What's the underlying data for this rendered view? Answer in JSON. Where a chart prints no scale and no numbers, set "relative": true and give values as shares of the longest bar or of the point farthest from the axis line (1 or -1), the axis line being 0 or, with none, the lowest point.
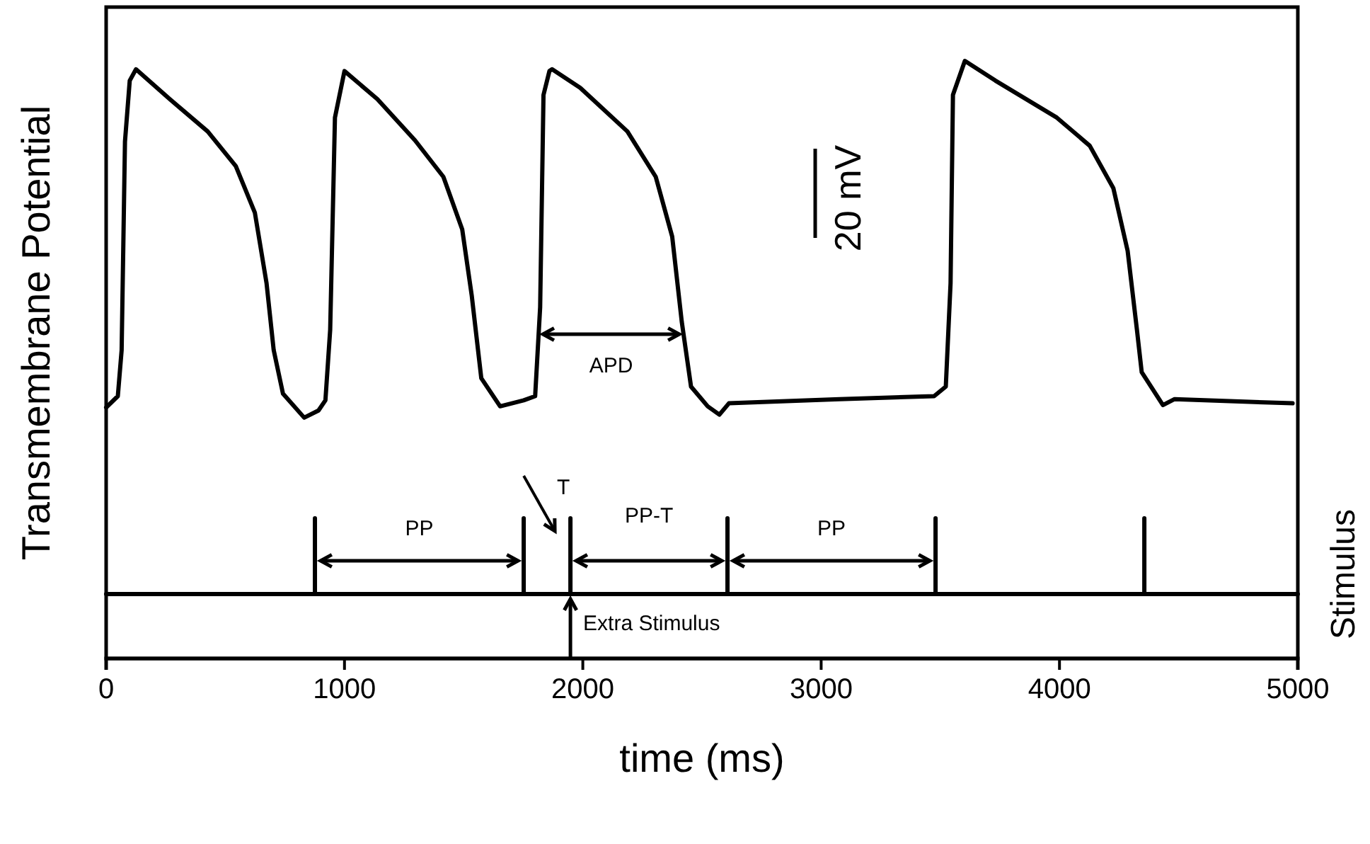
{
  "chart_data": [
    {
      "type": "line",
      "relative": true,
      "ylabel": "Transmembrane Potential",
      "xlim": [
        0,
        5000
      ],
      "tick_labels": false,
      "x": [
        0,
        49,
        65,
        79,
        99,
        125,
        267,
        426,
        544,
        624,
        673,
        703,
        742,
        831,
        891,
        920,
        940,
        960,
        1000,
        1138,
        1296,
        1415,
        1494,
        1534,
        1574,
        1653,
        1752,
        1800,
        1821,
        1835,
        1860,
        1871,
        1989,
        2187,
        2306,
        2375,
        2415,
        2454,
        2524,
        2573,
        2613,
        3078,
        3474,
        3523,
        3543,
        3553,
        3603,
        3731,
        3989,
        4127,
        4226,
        4286,
        4325,
        4345,
        4434,
        4483,
        4978
      ],
      "series": [
        {
          "color": "#000000",
          "values": [
            0.42,
            0.439,
            0.516,
            0.865,
            0.967,
            0.986,
            0.936,
            0.882,
            0.824,
            0.746,
            0.628,
            0.516,
            0.443,
            0.403,
            0.415,
            0.432,
            0.55,
            0.905,
            0.983,
            0.936,
            0.867,
            0.806,
            0.718,
            0.607,
            0.469,
            0.422,
            0.432,
            0.439,
            0.588,
            0.943,
            0.983,
            0.986,
            0.955,
            0.882,
            0.806,
            0.706,
            0.564,
            0.455,
            0.422,
            0.408,
            0.427,
            0.434,
            0.439,
            0.455,
            0.628,
            0.943,
            1,
            0.967,
            0.905,
            0.858,
            0.787,
            0.682,
            0.55,
            0.479,
            0.424,
            0.434,
            0.427
          ]
        }
      ],
      "annotations": [
        "APD",
        "20 mV"
      ]
    },
    {
      "type": "line",
      "relative": true,
      "xlabel": "time (ms)",
      "ylabel": "Stimulus",
      "xlim": [
        0,
        5000
      ],
      "xticks": [
        0,
        1000,
        2000,
        3000,
        4000,
        5000
      ],
      "tick_labels": "x",
      "x": [
        0,
        876,
        876,
        876,
        1752,
        1752,
        1752,
        1948,
        1948,
        1948,
        2607,
        2607,
        2607,
        3480,
        3480,
        3480,
        4356,
        4356,
        4356,
        5000
      ],
      "series": [
        {
          "color": "#000000",
          "values": [
            0.46,
            0.46,
            1,
            0.46,
            0.46,
            1,
            0.46,
            0.46,
            1,
            0.46,
            0.46,
            1,
            0.46,
            0.46,
            1,
            0.46,
            0.46,
            1,
            0.46,
            0.46
          ]
        }
      ],
      "annotations": [
        "PP",
        "T",
        "PP-T",
        "PP",
        "Extra Stimulus"
      ]
    }
  ]
}
